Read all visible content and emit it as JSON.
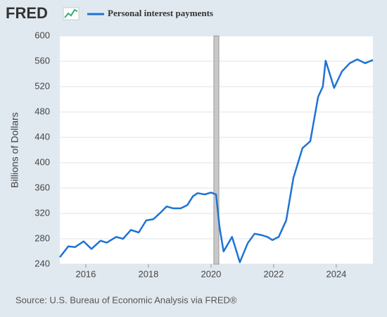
{
  "logo": "FRED",
  "chart_data": {
    "type": "line",
    "legend_title": "Personal interest payments",
    "y_label": "Billions of Dollars",
    "source": "Source: U.S. Bureau of Economic Analysis via FRED®",
    "x": [
      2015.17,
      2015.44,
      2015.66,
      2015.93,
      2016.18,
      2016.47,
      2016.67,
      2016.97,
      2017.19,
      2017.44,
      2017.69,
      2017.93,
      2018.16,
      2018.38,
      2018.58,
      2018.79,
      2019.03,
      2019.24,
      2019.42,
      2019.57,
      2019.8,
      2020.0,
      2020.16,
      2020.27,
      2020.4,
      2020.67,
      2020.92,
      2021.17,
      2021.39,
      2021.6,
      2021.8,
      2021.96,
      2022.16,
      2022.4,
      2022.63,
      2022.92,
      2023.17,
      2023.42,
      2023.57,
      2023.66,
      2023.93,
      2024.18,
      2024.43,
      2024.67,
      2024.92,
      2025.17
    ],
    "series": [
      {
        "name": "Personal interest payments",
        "color": "#1f73d4",
        "values": [
          251,
          268,
          267,
          276,
          264,
          277,
          274,
          283,
          280,
          294,
          290,
          309,
          311,
          321,
          331,
          328,
          328,
          333,
          347,
          352,
          350,
          353,
          350,
          299,
          260,
          283,
          243,
          273,
          288,
          286,
          283,
          278,
          283,
          309,
          376,
          423,
          434,
          504,
          520,
          561,
          518,
          544,
          557,
          563,
          557,
          562
        ]
      }
    ],
    "recession": [
      2020.09,
      2020.25
    ],
    "xlim": [
      2015.17,
      2025.17
    ],
    "xticks": [
      2016,
      2018,
      2020,
      2022,
      2024
    ],
    "ylim": [
      240,
      600
    ],
    "yticks": [
      240,
      280,
      320,
      360,
      400,
      440,
      480,
      520,
      560,
      600
    ],
    "grid": true
  }
}
